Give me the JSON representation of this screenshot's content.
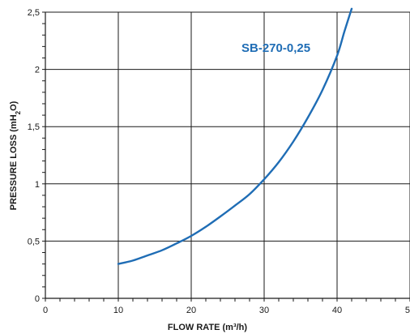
{
  "chart_data": {
    "type": "line",
    "title": "",
    "xlabel": "FLOW RATE (m³/h)",
    "ylabel": "PRESSURE LOSS (mH2O)",
    "xlim": [
      0,
      50
    ],
    "ylim": [
      0,
      2.5
    ],
    "x_ticks": [
      0,
      10,
      20,
      30,
      40,
      50
    ],
    "y_ticks": [
      0,
      0.5,
      1,
      1.5,
      2,
      2.5
    ],
    "x_tick_labels": [
      "0",
      "10",
      "20",
      "30",
      "40",
      "50"
    ],
    "y_tick_labels": [
      "0",
      "0,5",
      "1",
      "1,5",
      "2",
      "2,5"
    ],
    "grid": true,
    "series": [
      {
        "name": "SB-270-0,25",
        "color": "#1f6db5",
        "x": [
          10,
          12,
          14,
          16,
          18,
          20,
          22,
          24,
          26,
          28,
          30,
          32,
          34,
          36,
          38,
          40,
          41,
          42
        ],
        "y": [
          0.3,
          0.33,
          0.375,
          0.42,
          0.48,
          0.545,
          0.625,
          0.715,
          0.81,
          0.91,
          1.04,
          1.19,
          1.37,
          1.58,
          1.82,
          2.12,
          2.33,
          2.53
        ]
      }
    ],
    "series_label": "SB-270-0,25"
  }
}
